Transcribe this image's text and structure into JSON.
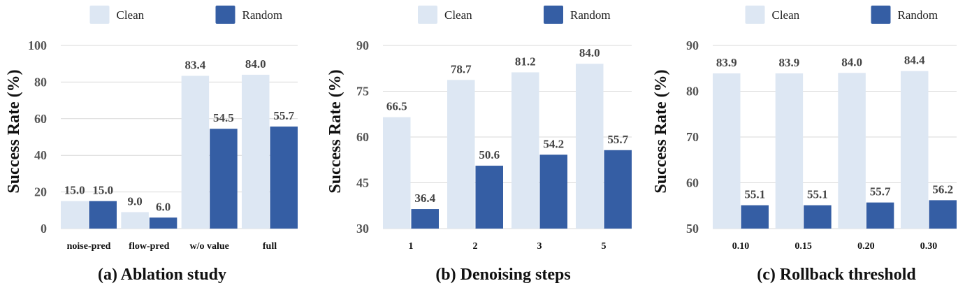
{
  "colors": {
    "clean": "#dde7f3",
    "random": "#355ea4"
  },
  "chart_data": [
    {
      "type": "bar",
      "title": "(a) Ablation study",
      "ylabel": "Success Rate (%)",
      "categories": [
        "noise-pred",
        "flow-pred",
        "w/o value",
        "full"
      ],
      "ylim": [
        0,
        100
      ],
      "yticks": [
        0,
        20,
        40,
        60,
        80,
        100
      ],
      "grid": true,
      "legend": "top",
      "series": [
        {
          "name": "Clean",
          "values": [
            15.0,
            9.0,
            83.4,
            84.0
          ],
          "labels": [
            "15.0",
            "9.0",
            "83.4",
            "84.0"
          ]
        },
        {
          "name": "Random",
          "values": [
            15.0,
            6.0,
            54.5,
            55.7
          ],
          "labels": [
            "15.0",
            "6.0",
            "54.5",
            "55.7"
          ]
        }
      ]
    },
    {
      "type": "bar",
      "title": "(b) Denoising steps",
      "ylabel": "Success Rate (%)",
      "categories": [
        "1",
        "2",
        "3",
        "5"
      ],
      "ylim": [
        30,
        90
      ],
      "yticks": [
        30,
        45,
        60,
        75,
        90
      ],
      "grid": true,
      "legend": "top",
      "series": [
        {
          "name": "Clean",
          "values": [
            66.5,
            78.7,
            81.2,
            84.0
          ],
          "labels": [
            "66.5",
            "78.7",
            "81.2",
            "84.0"
          ]
        },
        {
          "name": "Random",
          "values": [
            36.4,
            50.6,
            54.2,
            55.7
          ],
          "labels": [
            "36.4",
            "50.6",
            "54.2",
            "55.7"
          ]
        }
      ]
    },
    {
      "type": "bar",
      "title": "(c) Rollback threshold",
      "ylabel": "Success Rate (%)",
      "categories": [
        "0.10",
        "0.15",
        "0.20",
        "0.30"
      ],
      "ylim": [
        50,
        90
      ],
      "yticks": [
        50,
        60,
        70,
        80,
        90
      ],
      "grid": true,
      "legend": "top",
      "series": [
        {
          "name": "Clean",
          "values": [
            83.9,
            83.9,
            84.0,
            84.4
          ],
          "labels": [
            "83.9",
            "83.9",
            "84.0",
            "84.4"
          ]
        },
        {
          "name": "Random",
          "values": [
            55.1,
            55.1,
            55.7,
            56.2
          ],
          "labels": [
            "55.1",
            "55.1",
            "55.7",
            "56.2"
          ]
        }
      ]
    }
  ]
}
